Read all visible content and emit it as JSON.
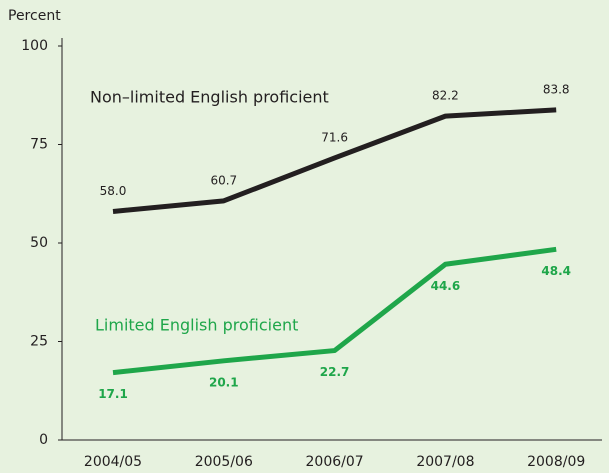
{
  "chart_data": {
    "type": "line",
    "y_axis_label": "Percent",
    "categories": [
      "2004/05",
      "2005/06",
      "2006/07",
      "2007/08",
      "2008/09"
    ],
    "series": [
      {
        "name": "Non–limited English proficient",
        "color": "#231f20",
        "values": [
          58.0,
          60.7,
          71.6,
          82.2,
          83.8
        ],
        "value_labels": [
          "58.0",
          "60.7",
          "71.6",
          "82.2",
          "83.8"
        ]
      },
      {
        "name": "Limited English proficient",
        "color": "#1fa64a",
        "values": [
          17.1,
          20.1,
          22.7,
          44.6,
          48.4
        ],
        "value_labels": [
          "17.1",
          "20.1",
          "22.7",
          "44.6",
          "48.4"
        ]
      }
    ],
    "ylim": [
      0,
      100
    ],
    "yticks": [
      0,
      25,
      50,
      75,
      100
    ],
    "grid": false
  }
}
